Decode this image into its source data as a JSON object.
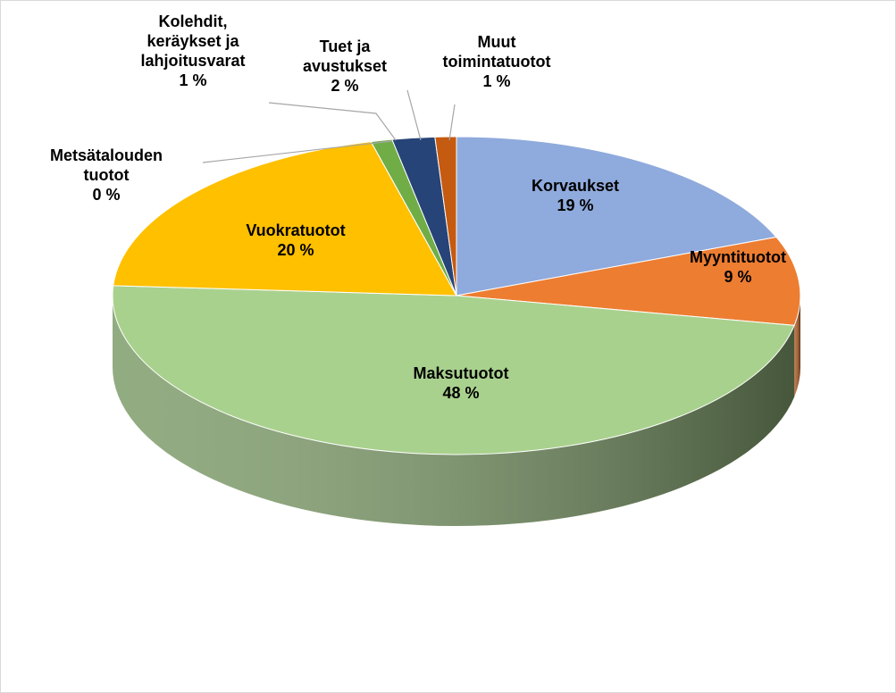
{
  "chart_data": {
    "type": "pie",
    "categories": [
      "Korvaukset",
      "Myyntituotot",
      "Maksutuotot",
      "Vuokratuotot",
      "Metsätalouden tuotot",
      "Kolehdit, keräykset ja lahjoitusvarat",
      "Tuet ja avustukset",
      "Muut toimintatuotot"
    ],
    "values": [
      19,
      9,
      48,
      20,
      0,
      1,
      2,
      1
    ],
    "value_labels": [
      "19 %",
      "9 %",
      "48 %",
      "20 %",
      "0 %",
      "1 %",
      "2 %",
      "1 %"
    ],
    "colors": [
      "#8faadc",
      "#ed7d31",
      "#a9d18e",
      "#ffc000",
      "#5b9bd5",
      "#70ad47",
      "#264478",
      "#c55a11"
    ]
  }
}
